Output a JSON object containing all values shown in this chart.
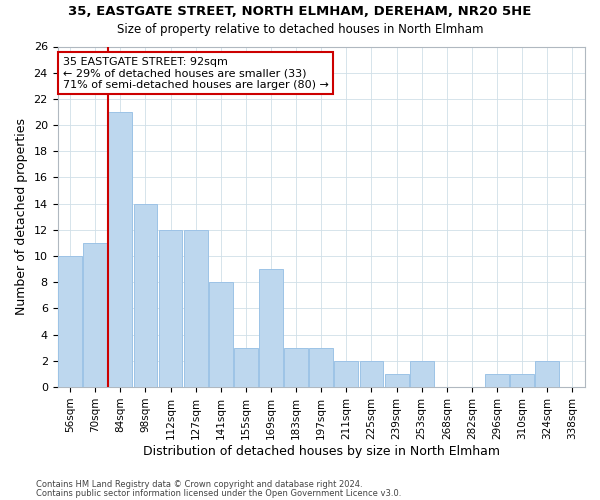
{
  "title1": "35, EASTGATE STREET, NORTH ELMHAM, DEREHAM, NR20 5HE",
  "title2": "Size of property relative to detached houses in North Elmham",
  "xlabel": "Distribution of detached houses by size in North Elmham",
  "ylabel": "Number of detached properties",
  "bar_labels": [
    "56sqm",
    "70sqm",
    "84sqm",
    "98sqm",
    "112sqm",
    "127sqm",
    "141sqm",
    "155sqm",
    "169sqm",
    "183sqm",
    "197sqm",
    "211sqm",
    "225sqm",
    "239sqm",
    "253sqm",
    "268sqm",
    "282sqm",
    "296sqm",
    "310sqm",
    "324sqm",
    "338sqm"
  ],
  "bar_values": [
    10,
    11,
    21,
    14,
    12,
    12,
    8,
    3,
    9,
    3,
    3,
    2,
    2,
    1,
    2,
    0,
    0,
    1,
    1,
    2,
    0
  ],
  "bar_color": "#BDD7EE",
  "bar_edge_color": "#9DC3E6",
  "annotation_title": "35 EASTGATE STREET: 92sqm",
  "annotation_line1": "← 29% of detached houses are smaller (33)",
  "annotation_line2": "71% of semi-detached houses are larger (80) →",
  "annotation_box_color": "#ffffff",
  "annotation_box_edge_color": "#cc0000",
  "vline_color": "#cc0000",
  "vline_x_index": 2,
  "ylim": [
    0,
    26
  ],
  "yticks": [
    0,
    2,
    4,
    6,
    8,
    10,
    12,
    14,
    16,
    18,
    20,
    22,
    24,
    26
  ],
  "footer1": "Contains HM Land Registry data © Crown copyright and database right 2024.",
  "footer2": "Contains public sector information licensed under the Open Government Licence v3.0.",
  "bg_color": "#ffffff",
  "grid_color": "#d0dfe8"
}
